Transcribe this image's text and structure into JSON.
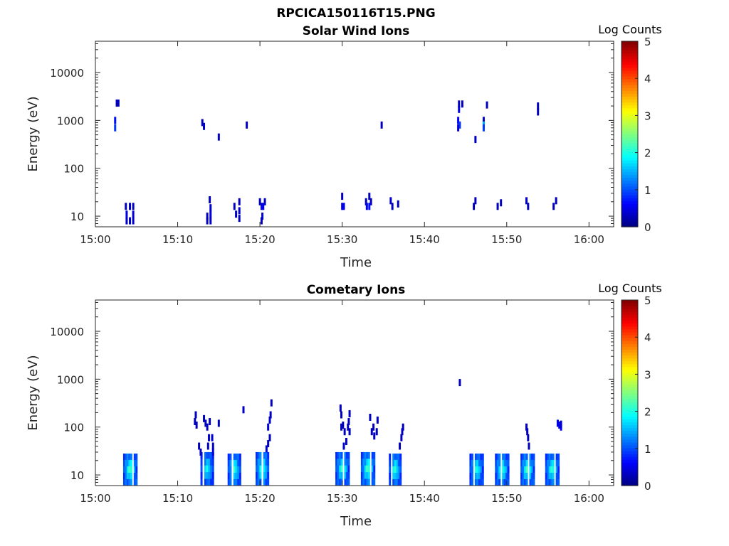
{
  "figure": {
    "title": "RPCICA150116T15.PNG"
  },
  "chart_data": [
    {
      "type": "heatmap",
      "title": "Solar Wind Ions",
      "xlabel": "Time",
      "ylabel": "Energy (eV)",
      "x_ticks": [
        "15:00",
        "15:10",
        "15:20",
        "15:30",
        "15:40",
        "15:50",
        "16:00"
      ],
      "x_range_minutes": [
        0,
        63
      ],
      "y_ticks": [
        "10",
        "100",
        "1000",
        "10000"
      ],
      "y_scale": "log",
      "y_range": [
        6,
        45000
      ],
      "colorbar": {
        "label": "Log Counts",
        "ticks": [
          "0",
          "1",
          "2",
          "3",
          "4",
          "5"
        ],
        "range": [
          0,
          5
        ],
        "colormap": "jet"
      },
      "cells": [
        {
          "t": 2.6,
          "e": 2300,
          "v": 0.3
        },
        {
          "t": 2.8,
          "e": 2300,
          "v": 0.3
        },
        {
          "t": 2.4,
          "e": 700,
          "v": 0.9
        },
        {
          "t": 2.4,
          "e": 1000,
          "v": 0.7
        },
        {
          "t": 13.0,
          "e": 900,
          "v": 0.3
        },
        {
          "t": 13.2,
          "e": 750,
          "v": 0.3
        },
        {
          "t": 15.0,
          "e": 450,
          "v": 0.3
        },
        {
          "t": 18.4,
          "e": 800,
          "v": 0.3
        },
        {
          "t": 34.8,
          "e": 800,
          "v": 0.3
        },
        {
          "t": 44.2,
          "e": 2200,
          "v": 0.3
        },
        {
          "t": 44.6,
          "e": 2200,
          "v": 0.3
        },
        {
          "t": 44.2,
          "e": 1700,
          "v": 0.5
        },
        {
          "t": 44.1,
          "e": 1000,
          "v": 0.6
        },
        {
          "t": 44.3,
          "e": 800,
          "v": 0.9
        },
        {
          "t": 44.1,
          "e": 700,
          "v": 0.4
        },
        {
          "t": 46.2,
          "e": 400,
          "v": 0.3
        },
        {
          "t": 47.6,
          "e": 2100,
          "v": 0.3
        },
        {
          "t": 47.2,
          "e": 1000,
          "v": 0.3
        },
        {
          "t": 47.2,
          "e": 800,
          "v": 1.5
        },
        {
          "t": 47.2,
          "e": 700,
          "v": 0.9
        },
        {
          "t": 53.8,
          "e": 2000,
          "v": 0.3
        },
        {
          "t": 53.8,
          "e": 1500,
          "v": 0.3
        },
        {
          "t": 3.7,
          "e": 16,
          "v": 0.3
        },
        {
          "t": 3.8,
          "e": 11,
          "v": 0.5
        },
        {
          "t": 3.8,
          "e": 8,
          "v": 0.4
        },
        {
          "t": 4.2,
          "e": 16,
          "v": 0.3
        },
        {
          "t": 4.2,
          "e": 8,
          "v": 0.3
        },
        {
          "t": 4.6,
          "e": 16,
          "v": 0.3
        },
        {
          "t": 4.6,
          "e": 11,
          "v": 0.4
        },
        {
          "t": 4.6,
          "e": 8,
          "v": 0.4
        },
        {
          "t": 13.6,
          "e": 10,
          "v": 0.3
        },
        {
          "t": 13.6,
          "e": 8,
          "v": 0.3
        },
        {
          "t": 13.9,
          "e": 22,
          "v": 0.3
        },
        {
          "t": 14.0,
          "e": 15,
          "v": 0.4
        },
        {
          "t": 14.0,
          "e": 11,
          "v": 0.5
        },
        {
          "t": 14.0,
          "e": 8,
          "v": 0.4
        },
        {
          "t": 16.9,
          "e": 16,
          "v": 0.3
        },
        {
          "t": 17.1,
          "e": 11,
          "v": 0.4
        },
        {
          "t": 17.5,
          "e": 20,
          "v": 0.3
        },
        {
          "t": 17.5,
          "e": 13,
          "v": 0.4
        },
        {
          "t": 17.5,
          "e": 9,
          "v": 0.3
        },
        {
          "t": 20.0,
          "e": 20,
          "v": 0.3
        },
        {
          "t": 20.2,
          "e": 16,
          "v": 0.4
        },
        {
          "t": 20.4,
          "e": 16,
          "v": 0.6
        },
        {
          "t": 20.3,
          "e": 10,
          "v": 0.4
        },
        {
          "t": 20.2,
          "e": 8,
          "v": 0.3
        },
        {
          "t": 20.6,
          "e": 20,
          "v": 0.3
        },
        {
          "t": 30.0,
          "e": 26,
          "v": 0.3
        },
        {
          "t": 30.0,
          "e": 16,
          "v": 0.5
        },
        {
          "t": 30.2,
          "e": 16,
          "v": 0.5
        },
        {
          "t": 32.9,
          "e": 20,
          "v": 0.3
        },
        {
          "t": 33.0,
          "e": 16,
          "v": 0.5
        },
        {
          "t": 33.3,
          "e": 26,
          "v": 0.3
        },
        {
          "t": 33.3,
          "e": 16,
          "v": 0.7
        },
        {
          "t": 33.5,
          "e": 20,
          "v": 0.3
        },
        {
          "t": 35.9,
          "e": 21,
          "v": 0.4
        },
        {
          "t": 36.1,
          "e": 16,
          "v": 0.3
        },
        {
          "t": 36.8,
          "e": 18,
          "v": 0.3
        },
        {
          "t": 46.0,
          "e": 16,
          "v": 0.3
        },
        {
          "t": 46.2,
          "e": 21,
          "v": 0.3
        },
        {
          "t": 48.9,
          "e": 16,
          "v": 0.3
        },
        {
          "t": 49.3,
          "e": 19,
          "v": 0.3
        },
        {
          "t": 52.4,
          "e": 21,
          "v": 0.4
        },
        {
          "t": 52.6,
          "e": 16,
          "v": 0.3
        },
        {
          "t": 55.7,
          "e": 16,
          "v": 0.3
        },
        {
          "t": 56.0,
          "e": 21,
          "v": 0.3
        }
      ]
    },
    {
      "type": "heatmap",
      "title": "Cometary Ions",
      "xlabel": "Time",
      "ylabel": "Energy (eV)",
      "x_ticks": [
        "15:00",
        "15:10",
        "15:20",
        "15:30",
        "15:40",
        "15:50",
        "16:00"
      ],
      "x_range_minutes": [
        0,
        63
      ],
      "y_ticks": [
        "10",
        "100",
        "1000",
        "10000"
      ],
      "y_scale": "log",
      "y_range": [
        6,
        45000
      ],
      "colorbar": {
        "label": "Log Counts",
        "ticks": [
          "0",
          "1",
          "2",
          "3",
          "4",
          "5"
        ],
        "range": [
          0,
          5
        ],
        "colormap": "jet"
      },
      "bursts": [
        {
          "t0": 3.5,
          "t1": 5.0,
          "top": 28,
          "peak": 1.9
        },
        {
          "t0": 12.9,
          "t1": 14.3,
          "top": 30,
          "peak": 1.6
        },
        {
          "t0": 16.2,
          "t1": 17.6,
          "top": 28,
          "peak": 1.8
        },
        {
          "t0": 19.6,
          "t1": 21.0,
          "top": 30,
          "peak": 1.9
        },
        {
          "t0": 29.3,
          "t1": 30.8,
          "top": 30,
          "peak": 1.8
        },
        {
          "t0": 32.4,
          "t1": 33.9,
          "top": 30,
          "peak": 1.9
        },
        {
          "t0": 35.8,
          "t1": 37.1,
          "top": 28,
          "peak": 1.8
        },
        {
          "t0": 45.6,
          "t1": 47.1,
          "top": 28,
          "peak": 1.7
        },
        {
          "t0": 48.7,
          "t1": 50.2,
          "top": 28,
          "peak": 1.8
        },
        {
          "t0": 51.8,
          "t1": 53.3,
          "top": 28,
          "peak": 1.9
        },
        {
          "t0": 54.8,
          "t1": 56.3,
          "top": 28,
          "peak": 1.8
        }
      ],
      "cells": [
        {
          "t": 12.2,
          "e": 180,
          "v": 0.3
        },
        {
          "t": 12.1,
          "e": 130,
          "v": 0.3
        },
        {
          "t": 12.3,
          "e": 110,
          "v": 0.3
        },
        {
          "t": 13.2,
          "e": 150,
          "v": 0.3
        },
        {
          "t": 13.4,
          "e": 120,
          "v": 0.3
        },
        {
          "t": 13.6,
          "e": 100,
          "v": 0.3
        },
        {
          "t": 13.9,
          "e": 130,
          "v": 0.3
        },
        {
          "t": 13.8,
          "e": 60,
          "v": 0.4
        },
        {
          "t": 13.7,
          "e": 40,
          "v": 0.3
        },
        {
          "t": 14.2,
          "e": 60,
          "v": 0.4
        },
        {
          "t": 14.3,
          "e": 40,
          "v": 0.3
        },
        {
          "t": 14.3,
          "e": 30,
          "v": 0.5
        },
        {
          "t": 15.0,
          "e": 120,
          "v": 0.3
        },
        {
          "t": 12.6,
          "e": 40,
          "v": 0.3
        },
        {
          "t": 12.8,
          "e": 30,
          "v": 0.3
        },
        {
          "t": 18.0,
          "e": 230,
          "v": 0.3
        },
        {
          "t": 21.4,
          "e": 320,
          "v": 0.3
        },
        {
          "t": 21.3,
          "e": 180,
          "v": 0.3
        },
        {
          "t": 21.2,
          "e": 140,
          "v": 0.4
        },
        {
          "t": 21.0,
          "e": 100,
          "v": 0.4
        },
        {
          "t": 21.2,
          "e": 60,
          "v": 0.3
        },
        {
          "t": 21.0,
          "e": 45,
          "v": 0.3
        },
        {
          "t": 20.8,
          "e": 35,
          "v": 0.4
        },
        {
          "t": 29.8,
          "e": 250,
          "v": 0.3
        },
        {
          "t": 29.9,
          "e": 180,
          "v": 0.3
        },
        {
          "t": 29.9,
          "e": 100,
          "v": 0.3
        },
        {
          "t": 30.1,
          "e": 110,
          "v": 0.3
        },
        {
          "t": 30.3,
          "e": 80,
          "v": 0.3
        },
        {
          "t": 30.5,
          "e": 50,
          "v": 0.3
        },
        {
          "t": 30.2,
          "e": 40,
          "v": 0.4
        },
        {
          "t": 30.9,
          "e": 190,
          "v": 0.3
        },
        {
          "t": 30.8,
          "e": 130,
          "v": 0.3
        },
        {
          "t": 30.7,
          "e": 100,
          "v": 0.3
        },
        {
          "t": 30.9,
          "e": 80,
          "v": 0.3
        },
        {
          "t": 33.4,
          "e": 160,
          "v": 0.3
        },
        {
          "t": 33.8,
          "e": 100,
          "v": 0.3
        },
        {
          "t": 33.6,
          "e": 80,
          "v": 0.3
        },
        {
          "t": 33.9,
          "e": 65,
          "v": 0.3
        },
        {
          "t": 34.3,
          "e": 140,
          "v": 0.3
        },
        {
          "t": 34.2,
          "e": 80,
          "v": 0.3
        },
        {
          "t": 37.4,
          "e": 100,
          "v": 0.3
        },
        {
          "t": 37.3,
          "e": 80,
          "v": 0.3
        },
        {
          "t": 37.2,
          "e": 60,
          "v": 0.3
        },
        {
          "t": 37.0,
          "e": 40,
          "v": 0.3
        },
        {
          "t": 44.3,
          "e": 850,
          "v": 0.3
        },
        {
          "t": 52.4,
          "e": 100,
          "v": 0.3
        },
        {
          "t": 52.5,
          "e": 80,
          "v": 0.3
        },
        {
          "t": 52.6,
          "e": 60,
          "v": 0.3
        },
        {
          "t": 52.7,
          "e": 40,
          "v": 0.3
        },
        {
          "t": 56.2,
          "e": 120,
          "v": 0.5
        },
        {
          "t": 56.4,
          "e": 110,
          "v": 0.5
        },
        {
          "t": 56.6,
          "e": 100,
          "v": 0.6
        },
        {
          "t": 56.6,
          "e": 115,
          "v": 0.4
        }
      ]
    }
  ]
}
